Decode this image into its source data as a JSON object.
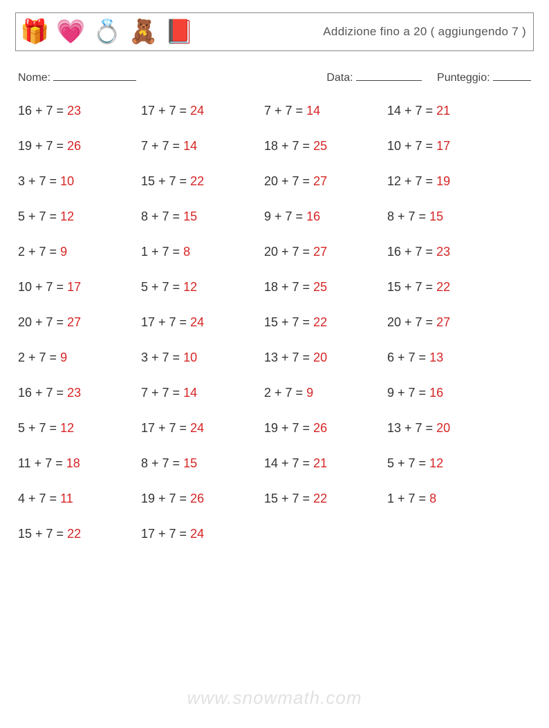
{
  "colors": {
    "answer": "#d62424",
    "equation": "#333333",
    "title": "#555555",
    "border": "#888888",
    "watermark": "rgba(0,0,0,0.12)"
  },
  "header": {
    "icons": [
      "🎁",
      "💗",
      "💍",
      "🧸",
      "📕"
    ],
    "title": "Addizione fino a 20 ( aggiungendo 7 )"
  },
  "meta": {
    "name_label": "Nome:",
    "date_label": "Data:",
    "score_label": "Punteggio:"
  },
  "addend": 7,
  "problems": [
    [
      {
        "a": 16,
        "r": 23
      },
      {
        "a": 17,
        "r": 24
      },
      {
        "a": 7,
        "r": 14
      },
      {
        "a": 14,
        "r": 21
      }
    ],
    [
      {
        "a": 19,
        "r": 26
      },
      {
        "a": 7,
        "r": 14
      },
      {
        "a": 18,
        "r": 25
      },
      {
        "a": 10,
        "r": 17
      }
    ],
    [
      {
        "a": 3,
        "r": 10
      },
      {
        "a": 15,
        "r": 22
      },
      {
        "a": 20,
        "r": 27
      },
      {
        "a": 12,
        "r": 19
      }
    ],
    [
      {
        "a": 5,
        "r": 12
      },
      {
        "a": 8,
        "r": 15
      },
      {
        "a": 9,
        "r": 16
      },
      {
        "a": 8,
        "r": 15
      }
    ],
    [
      {
        "a": 2,
        "r": 9
      },
      {
        "a": 1,
        "r": 8
      },
      {
        "a": 20,
        "r": 27
      },
      {
        "a": 16,
        "r": 23
      }
    ],
    [
      {
        "a": 10,
        "r": 17
      },
      {
        "a": 5,
        "r": 12
      },
      {
        "a": 18,
        "r": 25
      },
      {
        "a": 15,
        "r": 22
      }
    ],
    [
      {
        "a": 20,
        "r": 27
      },
      {
        "a": 17,
        "r": 24
      },
      {
        "a": 15,
        "r": 22
      },
      {
        "a": 20,
        "r": 27
      }
    ],
    [
      {
        "a": 2,
        "r": 9
      },
      {
        "a": 3,
        "r": 10
      },
      {
        "a": 13,
        "r": 20
      },
      {
        "a": 6,
        "r": 13
      }
    ],
    [
      {
        "a": 16,
        "r": 23
      },
      {
        "a": 7,
        "r": 14
      },
      {
        "a": 2,
        "r": 9
      },
      {
        "a": 9,
        "r": 16
      }
    ],
    [
      {
        "a": 5,
        "r": 12
      },
      {
        "a": 17,
        "r": 24
      },
      {
        "a": 19,
        "r": 26
      },
      {
        "a": 13,
        "r": 20
      }
    ],
    [
      {
        "a": 11,
        "r": 18
      },
      {
        "a": 8,
        "r": 15
      },
      {
        "a": 14,
        "r": 21
      },
      {
        "a": 5,
        "r": 12
      }
    ],
    [
      {
        "a": 4,
        "r": 11
      },
      {
        "a": 19,
        "r": 26
      },
      {
        "a": 15,
        "r": 22
      },
      {
        "a": 1,
        "r": 8
      }
    ],
    [
      {
        "a": 15,
        "r": 22
      },
      {
        "a": 17,
        "r": 24
      }
    ]
  ],
  "watermark": "www.snowmath.com"
}
